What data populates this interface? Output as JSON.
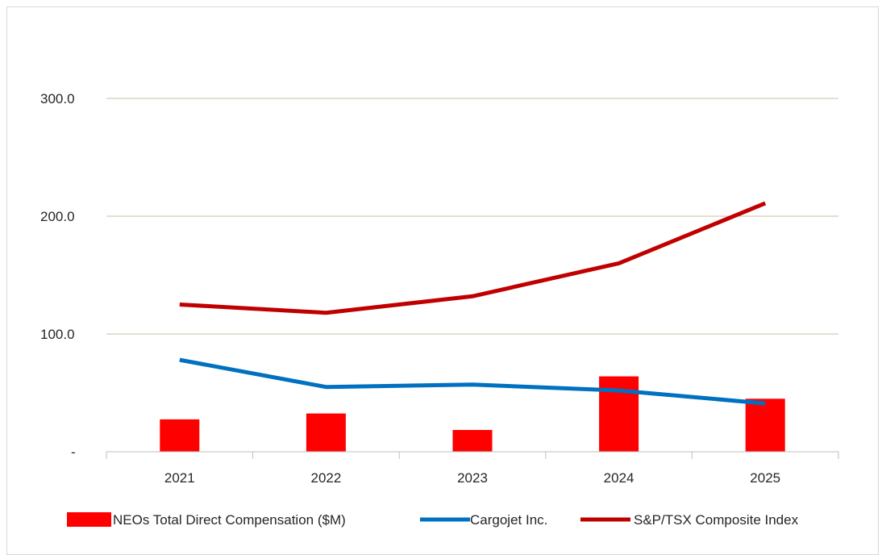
{
  "chart_data": {
    "type": "bar+line",
    "categories": [
      "2021",
      "2022",
      "2023",
      "2024",
      "2025"
    ],
    "y_ticks": [
      "-",
      "100.0",
      "200.0",
      "300.0"
    ],
    "ylim": [
      0,
      300
    ],
    "grid": true,
    "legend_position": "bottom",
    "series": [
      {
        "name": "NEOs Total Direct Compensation ($M)",
        "kind": "bar",
        "color": "#ff0000",
        "values": [
          27.5,
          32.5,
          18.5,
          64.0,
          45.0
        ]
      },
      {
        "name": "Cargojet Inc.",
        "kind": "line",
        "color": "#0070c0",
        "values": [
          78.0,
          55.0,
          57.0,
          52.0,
          41.0
        ]
      },
      {
        "name": "S&P/TSX Composite Index",
        "kind": "line",
        "color": "#c00000",
        "values": [
          125.0,
          118.0,
          132.0,
          160.0,
          211.0
        ]
      }
    ]
  }
}
